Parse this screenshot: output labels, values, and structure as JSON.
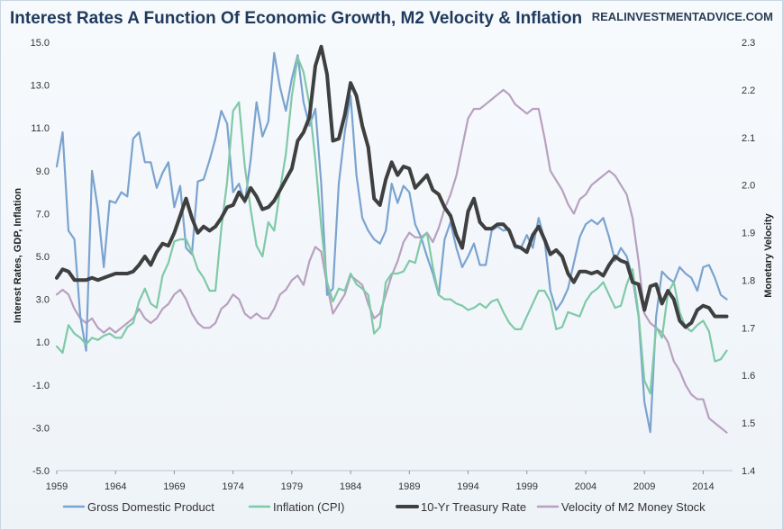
{
  "page": {
    "title": "Interest Rates A Function Of Economic Growth, M2 Velocity & Inflation",
    "brand": "REALINVESTMENTADVICE.COM"
  },
  "chart_data": {
    "type": "line",
    "title": "Interest Rates A Function Of Economic Growth, M2 Velocity & Inflation",
    "ylabel": "Interest Rates, GDP, Inflation",
    "y2label": "Monetary Velocity",
    "xlim": [
      1959,
      2016.5
    ],
    "ylim": [
      -5.0,
      15.0
    ],
    "y2lim": [
      1.4,
      2.3
    ],
    "x_ticks": [
      "1959",
      "1964",
      "1969",
      "1974",
      "1979",
      "1984",
      "1989",
      "1994",
      "1999",
      "2004",
      "2009",
      "2014"
    ],
    "y_ticks": [
      "15.0",
      "13.0",
      "11.0",
      "9.0",
      "7.0",
      "5.0",
      "3.0",
      "1.0",
      "-1.0",
      "-3.0",
      "-5.0"
    ],
    "y2_ticks": [
      "2.3",
      "2.2",
      "2.1",
      "2.0",
      "1.9",
      "1.8",
      "1.7",
      "1.6",
      "1.5",
      "1.4"
    ],
    "series": [
      {
        "name": "Gross Domestic Product",
        "axis": "left",
        "color": "#7ba3cf",
        "x": [
          1959,
          1959.5,
          1960,
          1960.5,
          1961,
          1961.5,
          1962,
          1962.5,
          1963,
          1963.5,
          1964,
          1964.5,
          1965,
          1965.5,
          1966,
          1966.5,
          1967,
          1967.5,
          1968,
          1968.5,
          1969,
          1969.5,
          1970,
          1970.5,
          1971,
          1971.5,
          1972,
          1972.5,
          1973,
          1973.5,
          1974,
          1974.5,
          1975,
          1975.5,
          1976,
          1976.5,
          1977,
          1977.5,
          1978,
          1978.5,
          1979,
          1979.5,
          1980,
          1980.5,
          1981,
          1981.5,
          1982,
          1982.5,
          1983,
          1983.5,
          1984,
          1984.5,
          1985,
          1985.5,
          1986,
          1986.5,
          1987,
          1987.5,
          1988,
          1988.5,
          1989,
          1989.5,
          1990,
          1990.5,
          1991,
          1991.5,
          1992,
          1992.5,
          1993,
          1993.5,
          1994,
          1994.5,
          1995,
          1995.5,
          1996,
          1996.5,
          1997,
          1997.5,
          1998,
          1998.5,
          1999,
          1999.5,
          2000,
          2000.5,
          2001,
          2001.5,
          2002,
          2002.5,
          2003,
          2003.5,
          2004,
          2004.5,
          2005,
          2005.5,
          2006,
          2006.5,
          2007,
          2007.5,
          2008,
          2008.5,
          2009,
          2009.5,
          2010,
          2010.5,
          2011,
          2011.5,
          2012,
          2012.5,
          2013,
          2013.5,
          2014,
          2014.5,
          2015,
          2015.5,
          2016
        ],
        "values": [
          9.2,
          10.8,
          6.2,
          5.8,
          2.2,
          0.6,
          9.0,
          7.2,
          4.5,
          7.6,
          7.5,
          8.0,
          7.8,
          10.5,
          10.8,
          9.4,
          9.4,
          8.2,
          8.9,
          9.4,
          7.3,
          8.3,
          5.4,
          5.1,
          8.5,
          8.6,
          9.5,
          10.5,
          11.8,
          11.2,
          8.0,
          8.4,
          7.5,
          9.5,
          12.2,
          10.6,
          11.3,
          14.5,
          12.9,
          11.8,
          13.3,
          14.4,
          12.2,
          11.1,
          11.9,
          8.4,
          3.2,
          3.5,
          8.4,
          10.8,
          12.5,
          8.8,
          6.8,
          6.2,
          5.8,
          5.6,
          6.2,
          8.4,
          7.5,
          8.3,
          8.0,
          6.5,
          5.9,
          5.0,
          4.2,
          3.2,
          5.8,
          6.6,
          5.4,
          4.5,
          5.0,
          5.6,
          4.6,
          4.6,
          6.2,
          6.4,
          6.2,
          6.3,
          5.4,
          5.4,
          6.0,
          5.4,
          6.8,
          5.8,
          3.4,
          2.5,
          2.9,
          3.5,
          4.7,
          5.9,
          6.5,
          6.7,
          6.5,
          6.8,
          5.9,
          4.8,
          5.4,
          5.0,
          4.0,
          2.2,
          -1.8,
          -3.2,
          2.2,
          4.3,
          4.0,
          3.8,
          4.5,
          4.2,
          4.0,
          3.4,
          4.5,
          4.6,
          4.0,
          3.2,
          3.0
        ]
      },
      {
        "name": "Inflation (CPI)",
        "axis": "left",
        "color": "#7fc9a7",
        "x": [
          1959,
          1959.5,
          1960,
          1960.5,
          1961,
          1961.5,
          1962,
          1962.5,
          1963,
          1963.5,
          1964,
          1964.5,
          1965,
          1965.5,
          1966,
          1966.5,
          1967,
          1967.5,
          1968,
          1968.5,
          1969,
          1969.5,
          1970,
          1970.5,
          1971,
          1971.5,
          1972,
          1972.5,
          1973,
          1973.5,
          1974,
          1974.5,
          1975,
          1975.5,
          1976,
          1976.5,
          1977,
          1977.5,
          1978,
          1978.5,
          1979,
          1979.5,
          1980,
          1980.5,
          1981,
          1981.5,
          1982,
          1982.5,
          1983,
          1983.5,
          1984,
          1984.5,
          1985,
          1985.5,
          1986,
          1986.5,
          1987,
          1987.5,
          1988,
          1988.5,
          1989,
          1989.5,
          1990,
          1990.5,
          1991,
          1991.5,
          1992,
          1992.5,
          1993,
          1993.5,
          1994,
          1994.5,
          1995,
          1995.5,
          1996,
          1996.5,
          1997,
          1997.5,
          1998,
          1998.5,
          1999,
          1999.5,
          2000,
          2000.5,
          2001,
          2001.5,
          2002,
          2002.5,
          2003,
          2003.5,
          2004,
          2004.5,
          2005,
          2005.5,
          2006,
          2006.5,
          2007,
          2007.5,
          2008,
          2008.5,
          2009,
          2009.5,
          2010,
          2010.5,
          2011,
          2011.5,
          2012,
          2012.5,
          2013,
          2013.5,
          2014,
          2014.5,
          2015,
          2015.5,
          2016
        ],
        "values": [
          0.8,
          0.5,
          1.8,
          1.4,
          1.2,
          0.9,
          1.2,
          1.1,
          1.3,
          1.4,
          1.2,
          1.2,
          1.7,
          1.9,
          2.9,
          3.5,
          2.8,
          2.6,
          4.1,
          4.7,
          5.7,
          5.8,
          5.8,
          5.2,
          4.4,
          4.0,
          3.4,
          3.4,
          6.3,
          8.5,
          11.8,
          12.2,
          9.2,
          7.2,
          5.5,
          5.0,
          6.6,
          6.2,
          8.1,
          9.8,
          12.5,
          14.3,
          13.6,
          12.1,
          9.5,
          6.4,
          3.8,
          2.9,
          3.5,
          3.4,
          4.2,
          3.7,
          3.5,
          3.2,
          1.4,
          1.7,
          3.8,
          4.2,
          4.2,
          4.3,
          4.8,
          4.7,
          5.8,
          6.1,
          4.5,
          3.2,
          3.0,
          3.0,
          2.8,
          2.7,
          2.5,
          2.6,
          2.8,
          2.6,
          2.9,
          3.0,
          2.4,
          1.9,
          1.6,
          1.6,
          2.2,
          2.8,
          3.4,
          3.4,
          2.9,
          1.6,
          1.7,
          2.4,
          2.3,
          2.2,
          2.9,
          3.3,
          3.5,
          3.8,
          3.2,
          2.6,
          2.7,
          3.7,
          4.4,
          2.3,
          -0.8,
          -1.4,
          1.7,
          1.2,
          3.3,
          3.8,
          2.4,
          1.7,
          1.5,
          1.8,
          2.0,
          1.5,
          0.1,
          0.2,
          0.6
        ]
      },
      {
        "name": "10-Yr Treasury Rate",
        "axis": "left",
        "color": "#3f3f3f",
        "x": [
          1959,
          1959.5,
          1960,
          1960.5,
          1961,
          1961.5,
          1962,
          1962.5,
          1963,
          1963.5,
          1964,
          1964.5,
          1965,
          1965.5,
          1966,
          1966.5,
          1967,
          1967.5,
          1968,
          1968.5,
          1969,
          1969.5,
          1970,
          1970.5,
          1971,
          1971.5,
          1972,
          1972.5,
          1973,
          1973.5,
          1974,
          1974.5,
          1975,
          1975.5,
          1976,
          1976.5,
          1977,
          1977.5,
          1978,
          1978.5,
          1979,
          1979.5,
          1980,
          1980.5,
          1981,
          1981.5,
          1982,
          1982.5,
          1983,
          1983.5,
          1984,
          1984.5,
          1985,
          1985.5,
          1986,
          1986.5,
          1987,
          1987.5,
          1988,
          1988.5,
          1989,
          1989.5,
          1990,
          1990.5,
          1991,
          1991.5,
          1992,
          1992.5,
          1993,
          1993.5,
          1994,
          1994.5,
          1995,
          1995.5,
          1996,
          1996.5,
          1997,
          1997.5,
          1998,
          1998.5,
          1999,
          1999.5,
          2000,
          2000.5,
          2001,
          2001.5,
          2002,
          2002.5,
          2003,
          2003.5,
          2004,
          2004.5,
          2005,
          2005.5,
          2006,
          2006.5,
          2007,
          2007.5,
          2008,
          2008.5,
          2009,
          2009.5,
          2010,
          2010.5,
          2011,
          2011.5,
          2012,
          2012.5,
          2013,
          2013.5,
          2014,
          2014.5,
          2015,
          2015.5,
          2016
        ],
        "values": [
          4.0,
          4.4,
          4.3,
          3.9,
          3.9,
          3.9,
          4.0,
          3.9,
          4.0,
          4.1,
          4.2,
          4.2,
          4.2,
          4.3,
          4.6,
          5.0,
          4.6,
          5.2,
          5.6,
          5.5,
          6.1,
          6.9,
          7.7,
          6.8,
          6.1,
          6.4,
          6.2,
          6.4,
          6.8,
          7.3,
          7.4,
          8.0,
          7.6,
          8.2,
          7.8,
          7.2,
          7.3,
          7.6,
          8.1,
          8.6,
          9.1,
          10.4,
          10.8,
          11.5,
          13.9,
          14.8,
          13.5,
          10.4,
          10.5,
          11.6,
          13.1,
          12.5,
          11.1,
          10.1,
          7.7,
          7.4,
          8.6,
          9.4,
          8.8,
          9.2,
          9.1,
          8.2,
          8.5,
          8.8,
          8.1,
          7.9,
          7.3,
          6.9,
          6.0,
          5.4,
          7.1,
          7.7,
          6.6,
          6.3,
          6.3,
          6.5,
          6.5,
          6.2,
          5.5,
          5.4,
          5.2,
          6.0,
          6.4,
          5.8,
          5.1,
          5.3,
          5.0,
          4.2,
          3.8,
          4.3,
          4.3,
          4.2,
          4.3,
          4.1,
          4.6,
          5.0,
          4.8,
          4.7,
          3.8,
          3.7,
          2.5,
          3.6,
          3.7,
          2.8,
          3.4,
          3.0,
          2.0,
          1.7,
          1.9,
          2.5,
          2.7,
          2.6,
          2.2,
          2.2,
          2.2
        ]
      },
      {
        "name": "Velocity of M2 Money Stock",
        "axis": "right",
        "color": "#b8a0bf",
        "x": [
          1959,
          1959.5,
          1960,
          1960.5,
          1961,
          1961.5,
          1962,
          1962.5,
          1963,
          1963.5,
          1964,
          1964.5,
          1965,
          1965.5,
          1966,
          1966.5,
          1967,
          1967.5,
          1968,
          1968.5,
          1969,
          1969.5,
          1970,
          1970.5,
          1971,
          1971.5,
          1972,
          1972.5,
          1973,
          1973.5,
          1974,
          1974.5,
          1975,
          1975.5,
          1976,
          1976.5,
          1977,
          1977.5,
          1978,
          1978.5,
          1979,
          1979.5,
          1980,
          1980.5,
          1981,
          1981.5,
          1982,
          1982.5,
          1983,
          1983.5,
          1984,
          1984.5,
          1985,
          1985.5,
          1986,
          1986.5,
          1987,
          1987.5,
          1988,
          1988.5,
          1989,
          1989.5,
          1990,
          1990.5,
          1991,
          1991.5,
          1992,
          1992.5,
          1993,
          1993.5,
          1994,
          1994.5,
          1995,
          1995.5,
          1996,
          1996.5,
          1997,
          1997.5,
          1998,
          1998.5,
          1999,
          1999.5,
          2000,
          2000.5,
          2001,
          2001.5,
          2002,
          2002.5,
          2003,
          2003.5,
          2004,
          2004.5,
          2005,
          2005.5,
          2006,
          2006.5,
          2007,
          2007.5,
          2008,
          2008.5,
          2009,
          2009.5,
          2010,
          2010.5,
          2011,
          2011.5,
          2012,
          2012.5,
          2013,
          2013.5,
          2014,
          2014.5,
          2015,
          2015.5,
          2016
        ],
        "values": [
          1.77,
          1.78,
          1.77,
          1.74,
          1.72,
          1.71,
          1.72,
          1.7,
          1.69,
          1.7,
          1.69,
          1.7,
          1.71,
          1.72,
          1.74,
          1.72,
          1.71,
          1.72,
          1.74,
          1.75,
          1.77,
          1.78,
          1.76,
          1.73,
          1.71,
          1.7,
          1.7,
          1.71,
          1.74,
          1.75,
          1.77,
          1.76,
          1.73,
          1.72,
          1.73,
          1.72,
          1.72,
          1.74,
          1.77,
          1.78,
          1.8,
          1.81,
          1.79,
          1.84,
          1.87,
          1.86,
          1.79,
          1.73,
          1.75,
          1.77,
          1.81,
          1.8,
          1.79,
          1.75,
          1.72,
          1.73,
          1.77,
          1.81,
          1.84,
          1.88,
          1.9,
          1.89,
          1.89,
          1.9,
          1.88,
          1.91,
          1.95,
          1.98,
          2.02,
          2.08,
          2.14,
          2.16,
          2.16,
          2.17,
          2.18,
          2.19,
          2.2,
          2.19,
          2.17,
          2.16,
          2.15,
          2.16,
          2.16,
          2.1,
          2.03,
          2.01,
          1.99,
          1.96,
          1.94,
          1.97,
          1.98,
          2.0,
          2.01,
          2.02,
          2.03,
          2.02,
          2.0,
          1.98,
          1.93,
          1.84,
          1.73,
          1.71,
          1.7,
          1.69,
          1.67,
          1.63,
          1.61,
          1.58,
          1.56,
          1.55,
          1.55,
          1.51,
          1.5,
          1.49,
          1.48
        ]
      }
    ],
    "legend": [
      "Gross Domestic Product",
      "Inflation (CPI)",
      "10-Yr Treasury Rate",
      "Velocity of M2 Money Stock"
    ],
    "legend_position": "bottom"
  }
}
